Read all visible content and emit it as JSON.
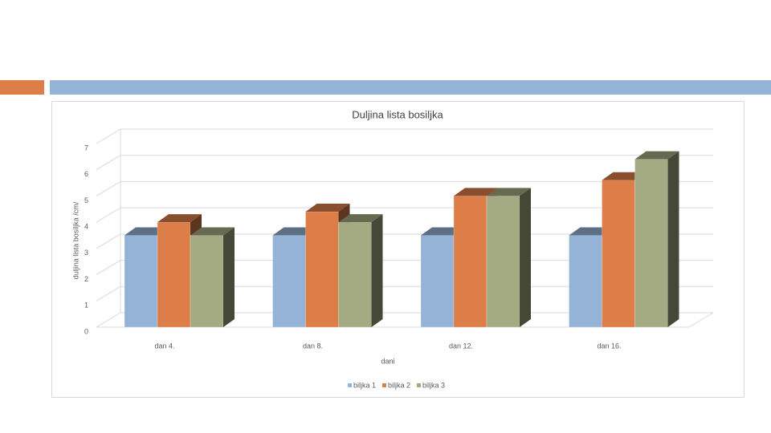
{
  "chart_data": {
    "type": "bar3d",
    "title": "Duljina lista bosiljka",
    "x_label": "dani",
    "y_label": "duljina lista bosiljka /cm/",
    "categories": [
      "dan 4.",
      "dan 8.",
      "dan 12.",
      "dan 16."
    ],
    "series": [
      {
        "name": "biljka 1",
        "color": "#95b3d7",
        "values": [
          3.5,
          3.5,
          3.5,
          3.5
        ]
      },
      {
        "name": "biljka 2",
        "color": "#dd7e48",
        "values": [
          4.0,
          4.4,
          5.0,
          5.6
        ]
      },
      {
        "name": "biljka 3",
        "color": "#a4ab82",
        "values": [
          3.5,
          4.0,
          5.0,
          6.4
        ]
      }
    ],
    "ylim": [
      0,
      7
    ],
    "yticks": [
      0,
      1,
      2,
      3,
      4,
      5,
      6,
      7
    ],
    "grid": true,
    "legend": "bottom"
  }
}
